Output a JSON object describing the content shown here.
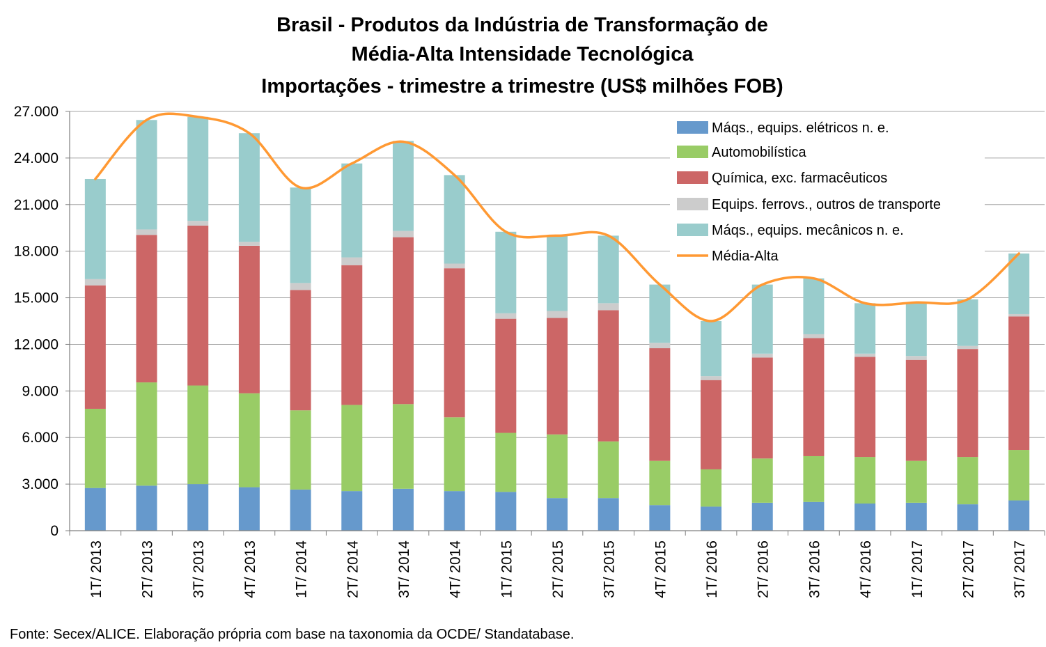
{
  "chart_data": {
    "type": "bar",
    "stacked": true,
    "title_lines": [
      "Brasil - Produtos da Indústria de Transformação de",
      "Média-Alta Intensidade Tecnológica",
      "Importações - trimestre a trimestre (US$ milhões FOB)"
    ],
    "categories": [
      "1T/ 2013",
      "2T/ 2013",
      "3T/ 2013",
      "4T/ 2013",
      "1T/ 2014",
      "2T/ 2014",
      "3T/ 2014",
      "4T/ 2014",
      "1T/ 2015",
      "2T/ 2015",
      "3T/ 2015",
      "4T/ 2015",
      "1T/ 2016",
      "2T/ 2016",
      "3T/ 2016",
      "4T/ 2016",
      "1T/ 2017",
      "2T/ 2017",
      "3T/ 2017"
    ],
    "series": [
      {
        "name": "Máqs., equips. elétricos n. e.",
        "color": "#6699cc",
        "values": [
          2750,
          2900,
          3000,
          2800,
          2650,
          2550,
          2700,
          2550,
          2500,
          2100,
          2100,
          1650,
          1550,
          1800,
          1850,
          1750,
          1800,
          1700,
          1950
        ]
      },
      {
        "name": "Automobilística",
        "color": "#99cc66",
        "values": [
          5100,
          6650,
          6350,
          6050,
          5100,
          5550,
          5450,
          4750,
          3800,
          4100,
          3650,
          2850,
          2400,
          2850,
          2950,
          3000,
          2700,
          3050,
          3250
        ]
      },
      {
        "name": "Química, exc. farmacêuticos",
        "color": "#cc6666",
        "values": [
          7950,
          9500,
          10300,
          9500,
          7750,
          9000,
          10750,
          9600,
          7350,
          7500,
          8450,
          7250,
          5750,
          6500,
          7600,
          6450,
          6500,
          6950,
          8600
        ]
      },
      {
        "name": "Equips. ferrovs., outros de transporte",
        "color": "#cccccc",
        "values": [
          400,
          350,
          300,
          250,
          450,
          500,
          400,
          300,
          350,
          450,
          450,
          350,
          250,
          250,
          250,
          200,
          250,
          200,
          150
        ]
      },
      {
        "name": "Máqs., equips. mecânicos  n. e.",
        "color": "#99cccc",
        "values": [
          6450,
          7050,
          6700,
          7000,
          6150,
          6050,
          5800,
          5700,
          5250,
          4850,
          4350,
          3750,
          3550,
          4450,
          3600,
          3250,
          3450,
          3000,
          3900
        ]
      }
    ],
    "line_series": {
      "name": "Média-Alta",
      "color": "#ff9933",
      "values": [
        22650,
        26450,
        26650,
        25600,
        22100,
        23650,
        25050,
        22900,
        19250,
        19000,
        19000,
        15850,
        13500,
        15850,
        16250,
        14650,
        14700,
        14900,
        17850
      ]
    },
    "ylim": [
      0,
      27000
    ],
    "yticks": [
      "0",
      "3.000",
      "6.000",
      "9.000",
      "12.000",
      "15.000",
      "18.000",
      "21.000",
      "24.000",
      "27.000"
    ],
    "ytick_values": [
      0,
      3000,
      6000,
      9000,
      12000,
      15000,
      18000,
      21000,
      24000,
      27000
    ],
    "grid": true,
    "legend_position": "top-right",
    "xlabel": "",
    "ylabel": ""
  },
  "source_note": "Fonte: Secex/ALICE. Elaboração própria com base na taxonomia da OCDE/ Standatabase."
}
